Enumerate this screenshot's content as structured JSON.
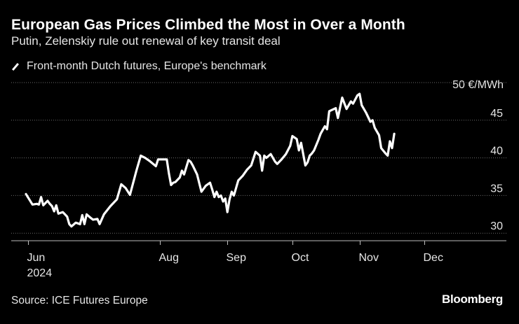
{
  "header": {
    "title": "European Gas Prices Climbed the Most in Over a Month",
    "subtitle": "Putin, Zelenskiy rule out renewal of key transit deal"
  },
  "legend": {
    "label": "Front-month Dutch futures, Europe's benchmark"
  },
  "footer": {
    "source": "Source: ICE Futures Europe",
    "brand": "Bloomberg"
  },
  "colors": {
    "background": "#000000",
    "line": "#ffffff",
    "grid": "#666666",
    "text": "#e6e6e6"
  },
  "chart_data": {
    "type": "line",
    "title": "European Gas Prices Climbed the Most in Over a Month",
    "subtitle": "Putin, Zelenskiy rule out renewal of key transit deal",
    "xlabel": "",
    "ylabel": "50 €/MWh",
    "ylim": [
      29,
      50
    ],
    "yticks": [
      {
        "value": 50,
        "label": "50 €/MWh"
      },
      {
        "value": 45,
        "label": "45"
      },
      {
        "value": 40,
        "label": "40"
      },
      {
        "value": 35,
        "label": "35"
      },
      {
        "value": 30,
        "label": "30"
      }
    ],
    "xlim": [
      "2024-05-31",
      "2024-12-20"
    ],
    "xticks": [
      {
        "date": "2024-06-01",
        "label": "Jun",
        "sublabel": "2024"
      },
      {
        "date": "2024-08-01",
        "label": "Aug",
        "sublabel": ""
      },
      {
        "date": "2024-09-01",
        "label": "Sep",
        "sublabel": ""
      },
      {
        "date": "2024-10-01",
        "label": "Oct",
        "sublabel": ""
      },
      {
        "date": "2024-11-01",
        "label": "Nov",
        "sublabel": ""
      },
      {
        "date": "2024-12-01",
        "label": "Dec",
        "sublabel": ""
      }
    ],
    "grid": "horizontal",
    "legend": "top-left",
    "series": [
      {
        "name": "Front-month Dutch futures, Europe's benchmark",
        "points": [
          [
            "2024-05-31",
            35.2
          ],
          [
            "2024-06-03",
            33.8
          ],
          [
            "2024-06-05",
            33.9
          ],
          [
            "2024-06-06",
            33.8
          ],
          [
            "2024-06-07",
            34.8
          ],
          [
            "2024-06-08",
            33.7
          ],
          [
            "2024-06-10",
            34.3
          ],
          [
            "2024-06-11",
            33.9
          ],
          [
            "2024-06-12",
            33.6
          ],
          [
            "2024-06-13",
            32.9
          ],
          [
            "2024-06-14",
            33.7
          ],
          [
            "2024-06-15",
            32.6
          ],
          [
            "2024-06-17",
            32.8
          ],
          [
            "2024-06-18",
            32.5
          ],
          [
            "2024-06-19",
            32.2
          ],
          [
            "2024-06-20",
            31.2
          ],
          [
            "2024-06-21",
            30.9
          ],
          [
            "2024-06-23",
            31.4
          ],
          [
            "2024-06-25",
            31.2
          ],
          [
            "2024-06-26",
            32.4
          ],
          [
            "2024-06-27",
            31.2
          ],
          [
            "2024-06-28",
            32.5
          ],
          [
            "2024-06-30",
            32.0
          ],
          [
            "2024-07-01",
            31.8
          ],
          [
            "2024-07-03",
            31.9
          ],
          [
            "2024-07-04",
            31.2
          ],
          [
            "2024-07-06",
            32.5
          ],
          [
            "2024-07-09",
            33.6
          ],
          [
            "2024-07-12",
            34.5
          ],
          [
            "2024-07-14",
            36.5
          ],
          [
            "2024-07-16",
            36.0
          ],
          [
            "2024-07-18",
            35.1
          ],
          [
            "2024-07-21",
            38.3
          ],
          [
            "2024-07-23",
            40.3
          ],
          [
            "2024-07-25",
            40.0
          ],
          [
            "2024-07-27",
            39.6
          ],
          [
            "2024-07-30",
            38.9
          ],
          [
            "2024-07-31",
            39.8
          ],
          [
            "2024-08-03",
            39.8
          ],
          [
            "2024-08-04",
            39.8
          ],
          [
            "2024-08-05",
            37.9
          ],
          [
            "2024-08-06",
            36.4
          ],
          [
            "2024-08-07",
            36.7
          ],
          [
            "2024-08-08",
            36.8
          ],
          [
            "2024-08-10",
            37.4
          ],
          [
            "2024-08-11",
            38.3
          ],
          [
            "2024-08-12",
            37.8
          ],
          [
            "2024-08-14",
            39.7
          ],
          [
            "2024-08-15",
            39.5
          ],
          [
            "2024-08-16",
            39.0
          ],
          [
            "2024-08-18",
            37.8
          ],
          [
            "2024-08-20",
            35.5
          ],
          [
            "2024-08-22",
            36.3
          ],
          [
            "2024-08-24",
            36.7
          ],
          [
            "2024-08-25",
            35.8
          ],
          [
            "2024-08-26",
            34.8
          ],
          [
            "2024-08-27",
            35.5
          ],
          [
            "2024-08-28",
            34.8
          ],
          [
            "2024-08-29",
            35.0
          ],
          [
            "2024-08-30",
            34.2
          ],
          [
            "2024-08-31",
            34.6
          ],
          [
            "2024-09-01",
            32.8
          ],
          [
            "2024-09-02",
            34.5
          ],
          [
            "2024-09-03",
            35.5
          ],
          [
            "2024-09-04",
            35.0
          ],
          [
            "2024-09-06",
            37.0
          ],
          [
            "2024-09-08",
            37.6
          ],
          [
            "2024-09-10",
            38.4
          ],
          [
            "2024-09-12",
            39.0
          ],
          [
            "2024-09-14",
            40.8
          ],
          [
            "2024-09-16",
            40.3
          ],
          [
            "2024-09-17",
            38.3
          ],
          [
            "2024-09-18",
            40.3
          ],
          [
            "2024-09-19",
            40.0
          ],
          [
            "2024-09-21",
            40.5
          ],
          [
            "2024-09-23",
            39.5
          ],
          [
            "2024-09-24",
            39.2
          ],
          [
            "2024-09-26",
            39.8
          ],
          [
            "2024-09-28",
            40.5
          ],
          [
            "2024-09-30",
            41.6
          ],
          [
            "2024-10-01",
            42.9
          ],
          [
            "2024-10-03",
            42.5
          ],
          [
            "2024-10-04",
            41.0
          ],
          [
            "2024-10-05",
            42.0
          ],
          [
            "2024-10-07",
            39.0
          ],
          [
            "2024-10-08",
            39.4
          ],
          [
            "2024-10-09",
            40.3
          ],
          [
            "2024-10-10",
            40.6
          ],
          [
            "2024-10-11",
            41.0
          ],
          [
            "2024-10-13",
            42.4
          ],
          [
            "2024-10-14",
            43.2
          ],
          [
            "2024-10-16",
            44.2
          ],
          [
            "2024-10-17",
            43.8
          ],
          [
            "2024-10-18",
            46.2
          ],
          [
            "2024-10-21",
            46.6
          ],
          [
            "2024-10-22",
            45.3
          ],
          [
            "2024-10-24",
            48.0
          ],
          [
            "2024-10-26",
            46.5
          ],
          [
            "2024-10-28",
            47.5
          ],
          [
            "2024-10-29",
            47.2
          ],
          [
            "2024-10-31",
            48.3
          ],
          [
            "2024-11-01",
            48.5
          ],
          [
            "2024-11-02",
            47.0
          ],
          [
            "2024-11-04",
            46.0
          ],
          [
            "2024-11-06",
            44.8
          ],
          [
            "2024-11-07",
            45.0
          ],
          [
            "2024-11-08",
            44.0
          ],
          [
            "2024-11-10",
            43.0
          ],
          [
            "2024-11-11",
            41.3
          ],
          [
            "2024-11-13",
            40.6
          ],
          [
            "2024-11-14",
            40.3
          ],
          [
            "2024-11-15",
            42.2
          ],
          [
            "2024-11-16",
            41.3
          ],
          [
            "2024-11-17",
            43.2
          ]
        ]
      }
    ]
  }
}
